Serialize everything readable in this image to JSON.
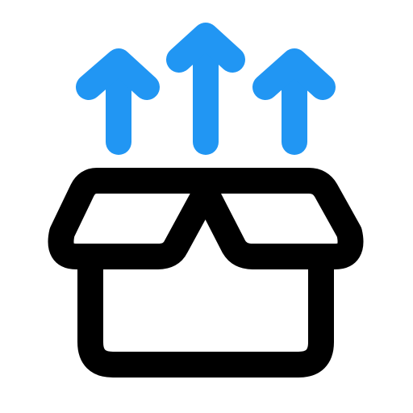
{
  "icon": {
    "name": "unboxing-icon",
    "colors": {
      "box": "#000000",
      "arrows": "#2196F3",
      "background": "#FFFFFF"
    }
  }
}
